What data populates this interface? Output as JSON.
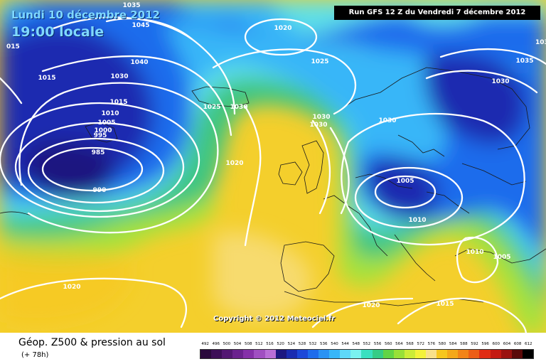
{
  "header": {
    "date": "Lundi 10 décembre 2012",
    "time": "19:00 locale",
    "run": "Run GFS 12 Z du Vendredi 7 décembre 2012"
  },
  "copyright": "Copyright © 2012 Meteociel.fr",
  "legend": {
    "title": "Géop. Z500 & pression au sol",
    "offset": "(+ 78h)",
    "scale": [
      {
        "value": "492",
        "color": "#2a0a3c"
      },
      {
        "value": "496",
        "color": "#3d0f57"
      },
      {
        "value": "500",
        "color": "#531872"
      },
      {
        "value": "504",
        "color": "#6b228e"
      },
      {
        "value": "508",
        "color": "#8530a8"
      },
      {
        "value": "512",
        "color": "#a04fc1"
      },
      {
        "value": "516",
        "color": "#b96fd6"
      },
      {
        "value": "520",
        "color": "#1c1880"
      },
      {
        "value": "524",
        "color": "#1a2cb0"
      },
      {
        "value": "528",
        "color": "#1c48d8"
      },
      {
        "value": "532",
        "color": "#1e6cec"
      },
      {
        "value": "536",
        "color": "#2a92f4"
      },
      {
        "value": "540",
        "color": "#38b6f8"
      },
      {
        "value": "544",
        "color": "#5ed8f8"
      },
      {
        "value": "548",
        "color": "#7af2f0"
      },
      {
        "value": "552",
        "color": "#3ae0c0"
      },
      {
        "value": "556",
        "color": "#36cc86"
      },
      {
        "value": "560",
        "color": "#62d446"
      },
      {
        "value": "564",
        "color": "#98e038"
      },
      {
        "value": "568",
        "color": "#ccec38"
      },
      {
        "value": "572",
        "color": "#f4f23a"
      },
      {
        "value": "576",
        "color": "#f8e08a"
      },
      {
        "value": "580",
        "color": "#f6c61e"
      },
      {
        "value": "584",
        "color": "#f4a81a"
      },
      {
        "value": "588",
        "color": "#f28418"
      },
      {
        "value": "592",
        "color": "#ec5e16"
      },
      {
        "value": "596",
        "color": "#e02c14"
      },
      {
        "value": "600",
        "color": "#c41a12"
      },
      {
        "value": "604",
        "color": "#9a1210"
      },
      {
        "value": "608",
        "color": "#5a0a0a"
      },
      {
        "value": "612",
        "color": "#000000"
      }
    ]
  },
  "isobar_labels": [
    "1035",
    "1045",
    "1040",
    "1030",
    "1015",
    "1015",
    "1010",
    "1005",
    "1000",
    "995",
    "985",
    "990",
    "1020",
    "1025",
    "1030",
    "1025",
    "1020",
    "1030",
    "1030",
    "1030",
    "1005",
    "1010",
    "1030",
    "1035",
    "1010",
    "1005",
    "1015",
    "1020",
    "1020",
    "015",
    "103"
  ]
}
